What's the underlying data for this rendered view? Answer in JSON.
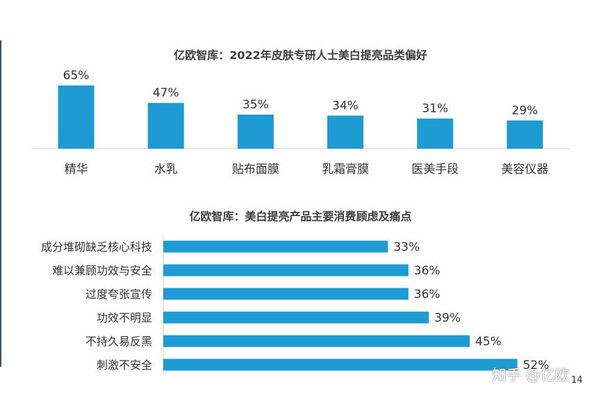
{
  "chart_data": [
    {
      "type": "bar",
      "title": "亿欧智库：2022年皮肤专研人士美白提亮品类偏好",
      "categories": [
        "精华",
        "水乳",
        "贴布面膜",
        "乳霜膏膜",
        "医美手段",
        "美容仪器"
      ],
      "values": [
        65,
        47,
        35,
        34,
        31,
        29
      ],
      "value_labels": [
        "65%",
        "47%",
        "35%",
        "34%",
        "31%",
        "29%"
      ],
      "ylim": [
        0,
        70
      ],
      "color": "#1f9bd3",
      "grid": false,
      "legend": "none"
    },
    {
      "type": "bar",
      "orientation": "horizontal",
      "title": "亿欧智库：美白提亮产品主要消费顾虑及痛点",
      "categories": [
        "成分堆砌缺乏核心科技",
        "难以兼顾功效与安全",
        "过度夸张宣传",
        "功效不明显",
        "不持久易反黑",
        "刺激不安全"
      ],
      "values": [
        33,
        36,
        36,
        39,
        45,
        52
      ],
      "value_labels": [
        "33%",
        "36%",
        "36%",
        "39%",
        "45%",
        "52%"
      ],
      "xlim": [
        0,
        60
      ],
      "color": "#1f9bd3",
      "grid": false,
      "legend": "none"
    }
  ],
  "watermark": "知乎 @亿欧",
  "page_number": "14"
}
